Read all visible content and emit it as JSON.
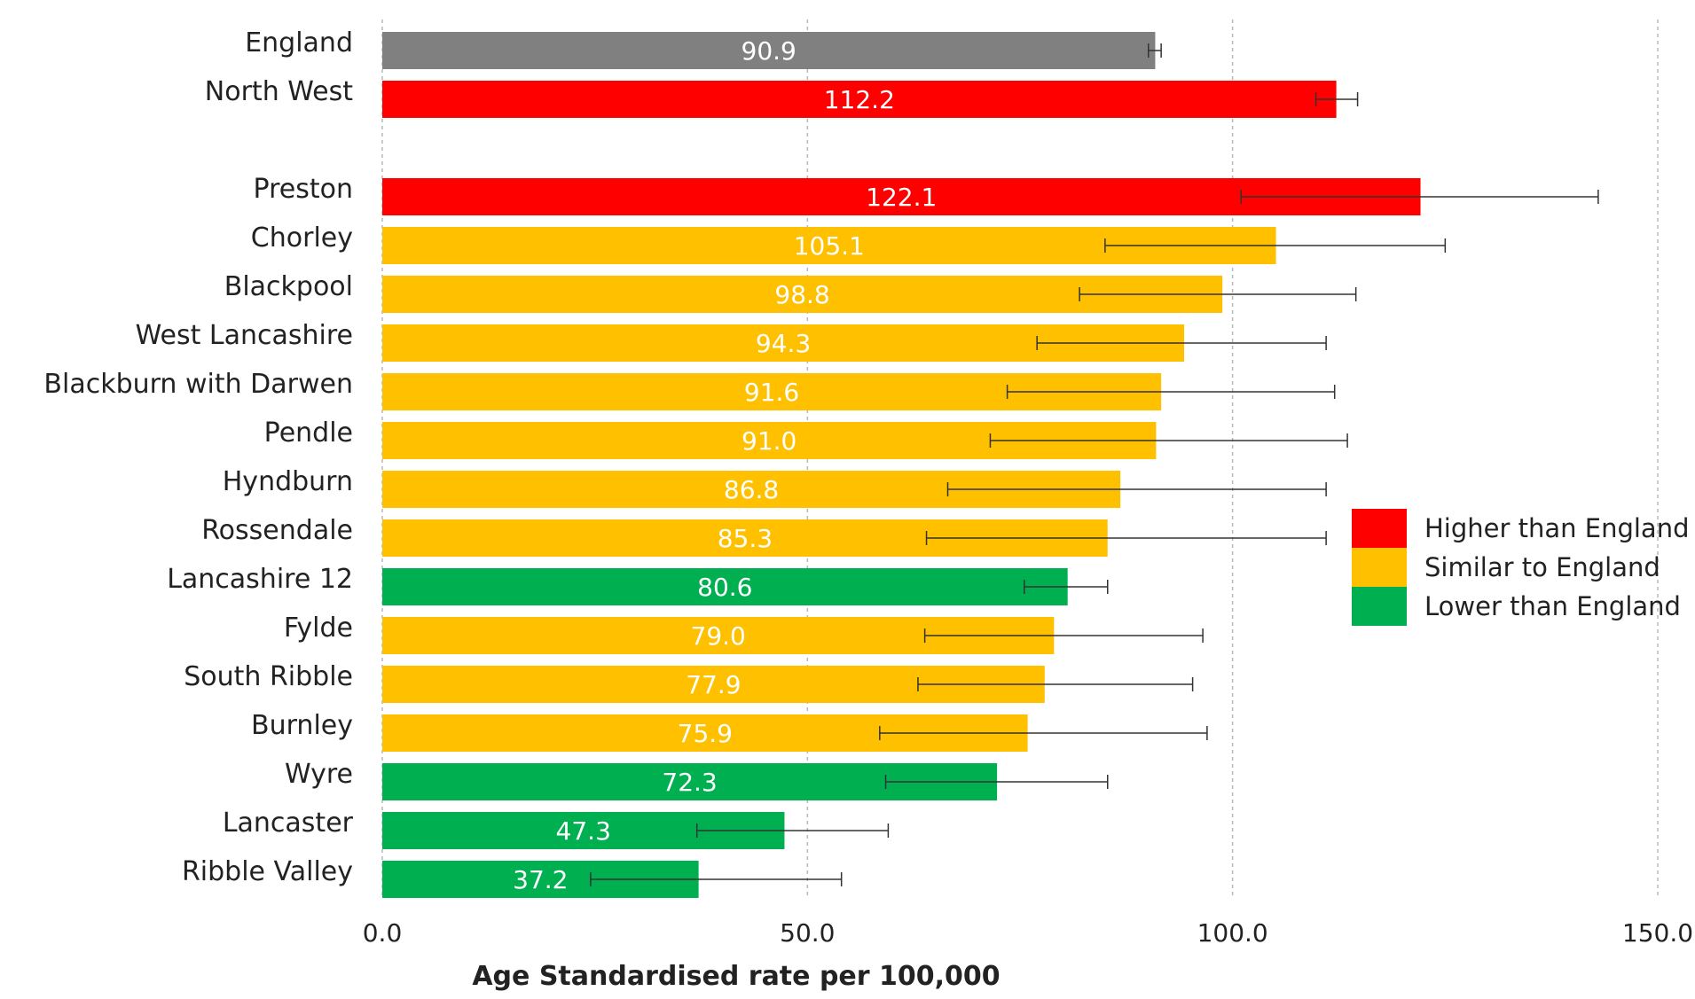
{
  "chart_data": {
    "type": "bar",
    "orientation": "horizontal",
    "title": "",
    "xlabel": "Age Standardised rate per 100,000",
    "ylabel": "",
    "xlim": [
      0,
      150
    ],
    "x_ticks": [
      0,
      50,
      100,
      150
    ],
    "x_tick_labels": [
      "0.0",
      "50.0",
      "100.0",
      "150.0"
    ],
    "grid": "vertical dashed",
    "legend_position": "right",
    "legend": [
      {
        "key": "higher",
        "label": "Higher than England",
        "color": "#ff0000"
      },
      {
        "key": "similar",
        "label": "Similar to England",
        "color": "#ffc000"
      },
      {
        "key": "lower",
        "label": "Lower than England",
        "color": "#00b050"
      }
    ],
    "reference_color": "#808080",
    "bars": [
      {
        "category": "England",
        "value": 90.9,
        "label": "90.9",
        "ci": [
          90.1,
          91.6
        ],
        "group": "reference"
      },
      {
        "category": "North West",
        "value": 112.2,
        "label": "112.2",
        "ci": [
          109.8,
          114.7
        ],
        "group": "higher"
      },
      {
        "category": "Preston",
        "value": 122.1,
        "label": "122.1",
        "ci": [
          101.0,
          143.0
        ],
        "group": "higher"
      },
      {
        "category": "Chorley",
        "value": 105.1,
        "label": "105.1",
        "ci": [
          85.0,
          125.0
        ],
        "group": "similar"
      },
      {
        "category": "Blackpool",
        "value": 98.8,
        "label": "98.8",
        "ci": [
          82.0,
          114.5
        ],
        "group": "similar"
      },
      {
        "category": "West Lancashire",
        "value": 94.3,
        "label": "94.3",
        "ci": [
          77.0,
          111.0
        ],
        "group": "similar"
      },
      {
        "category": "Blackburn with Darwen",
        "value": 91.6,
        "label": "91.6",
        "ci": [
          73.5,
          112.0
        ],
        "group": "similar"
      },
      {
        "category": "Pendle",
        "value": 91.0,
        "label": "91.0",
        "ci": [
          71.5,
          113.5
        ],
        "group": "similar"
      },
      {
        "category": "Hyndburn",
        "value": 86.8,
        "label": "86.8",
        "ci": [
          66.5,
          111.0
        ],
        "group": "similar"
      },
      {
        "category": "Rossendale",
        "value": 85.3,
        "label": "85.3",
        "ci": [
          64.0,
          111.0
        ],
        "group": "similar"
      },
      {
        "category": "Lancashire 12",
        "value": 80.6,
        "label": "80.6",
        "ci": [
          75.5,
          85.3
        ],
        "group": "lower"
      },
      {
        "category": "Fylde",
        "value": 79.0,
        "label": "79.0",
        "ci": [
          63.8,
          96.5
        ],
        "group": "similar"
      },
      {
        "category": "South Ribble",
        "value": 77.9,
        "label": "77.9",
        "ci": [
          63.0,
          95.3
        ],
        "group": "similar"
      },
      {
        "category": "Burnley",
        "value": 75.9,
        "label": "75.9",
        "ci": [
          58.5,
          97.0
        ],
        "group": "similar"
      },
      {
        "category": "Wyre",
        "value": 72.3,
        "label": "72.3",
        "ci": [
          59.2,
          85.3
        ],
        "group": "lower"
      },
      {
        "category": "Lancaster",
        "value": 47.3,
        "label": "47.3",
        "ci": [
          37.0,
          59.5
        ],
        "group": "lower"
      },
      {
        "category": "Ribble Valley",
        "value": 37.2,
        "label": "37.2",
        "ci": [
          24.5,
          54.0
        ],
        "group": "lower"
      }
    ]
  }
}
